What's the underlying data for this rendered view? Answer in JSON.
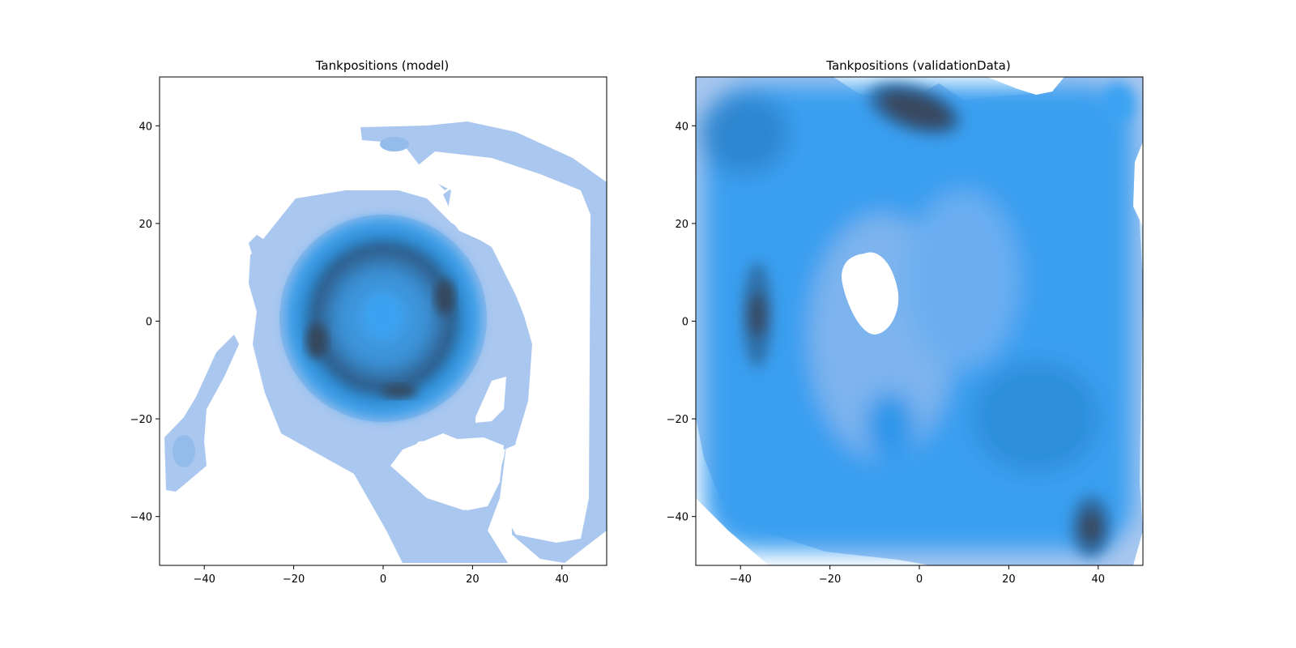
{
  "figure": {
    "background": "#ffffff",
    "colors": {
      "lightest": "#a9c7ef",
      "mid": "#45a6f2",
      "bright": "#2f9ff0",
      "dark": "#2d7fbf",
      "darkest": "#394a60"
    }
  },
  "chart_data": [
    {
      "type": "heatmap",
      "subtype": "kde-contour-filled",
      "title": "Tankpositions (model)",
      "xlabel": "",
      "ylabel": "",
      "xlim": [
        -50,
        50
      ],
      "ylim": [
        -50,
        50
      ],
      "xticks": [
        -40,
        -20,
        0,
        20,
        40
      ],
      "yticks": [
        -40,
        -20,
        0,
        20,
        40
      ],
      "grid": false,
      "description_of_density": [
        {
          "shape": "ring",
          "center": [
            0,
            0
          ],
          "radius": 16,
          "width": 9,
          "weight": 1.0
        },
        {
          "shape": "blob",
          "center": [
            0,
            1
          ],
          "sx": 3,
          "sy": 3,
          "weight": 0.45
        },
        {
          "shape": "blob",
          "center": [
            14,
            5
          ],
          "sx": 2,
          "sy": 4,
          "weight": 0.35
        },
        {
          "shape": "blob",
          "center": [
            -15,
            -5
          ],
          "sx": 2.5,
          "sy": 4,
          "weight": 0.35
        },
        {
          "shape": "blob",
          "center": [
            4,
            -14
          ],
          "sx": 4,
          "sy": 2,
          "weight": 0.25
        },
        {
          "shape": "arc",
          "center": [
            22,
            -5
          ],
          "radius": 30,
          "from_deg": -110,
          "to_deg": 80,
          "width": 3,
          "weight": 0.22
        },
        {
          "shape": "band",
          "points": [
            [
              -8,
              38
            ],
            [
              25,
              38
            ],
            [
              45,
              25
            ],
            [
              46,
              0
            ],
            [
              45,
              -40
            ],
            [
              38,
              -45
            ],
            [
              25,
              -50
            ]
          ],
          "width": 3.5,
          "weight": 0.22
        },
        {
          "shape": "band",
          "points": [
            [
              -46,
              -33
            ],
            [
              -42,
              -22
            ],
            [
              -38,
              -12
            ],
            [
              -33,
              -4
            ]
          ],
          "width": 2.2,
          "weight": 0.22
        },
        {
          "shape": "band",
          "points": [
            [
              -27,
              16
            ],
            [
              -25,
              8
            ],
            [
              -26,
              0
            ]
          ],
          "width": 2.2,
          "weight": 0.2
        }
      ]
    },
    {
      "type": "heatmap",
      "subtype": "kde-contour-filled",
      "title": "Tankpositions (validationData)",
      "xlabel": "",
      "ylabel": "",
      "xlim": [
        -50,
        50
      ],
      "ylim": [
        -50,
        50
      ],
      "xticks": [
        -40,
        -20,
        0,
        20,
        40
      ],
      "yticks": [
        -40,
        -20,
        0,
        20,
        40
      ],
      "grid": false,
      "description_of_density": [
        {
          "shape": "field",
          "level": 0.42
        },
        {
          "shape": "blob",
          "center": [
            -36,
            1
          ],
          "sx": 2.2,
          "sy": 5,
          "weight": 0.65
        },
        {
          "shape": "blob",
          "center": [
            0,
            43
          ],
          "sx": 8,
          "sy": 3,
          "weight": 0.65
        },
        {
          "shape": "blob",
          "center": [
            38,
            -42
          ],
          "sx": 3,
          "sy": 4,
          "weight": 0.6
        },
        {
          "shape": "blob",
          "center": [
            44,
            45
          ],
          "sx": 3,
          "sy": 3,
          "weight": 0.35
        },
        {
          "shape": "blob",
          "center": [
            -5,
            -22
          ],
          "sx": 4,
          "sy": 5,
          "weight": 0.3
        },
        {
          "shape": "blob",
          "center": [
            30,
            -18
          ],
          "sx": 8,
          "sy": 8,
          "weight": 0.25
        },
        {
          "shape": "hole",
          "center": [
            -12,
            6
          ],
          "sx": 5,
          "sy": 9,
          "weight": 0.6
        },
        {
          "shape": "edge-falloff",
          "margin": 6
        }
      ]
    }
  ]
}
